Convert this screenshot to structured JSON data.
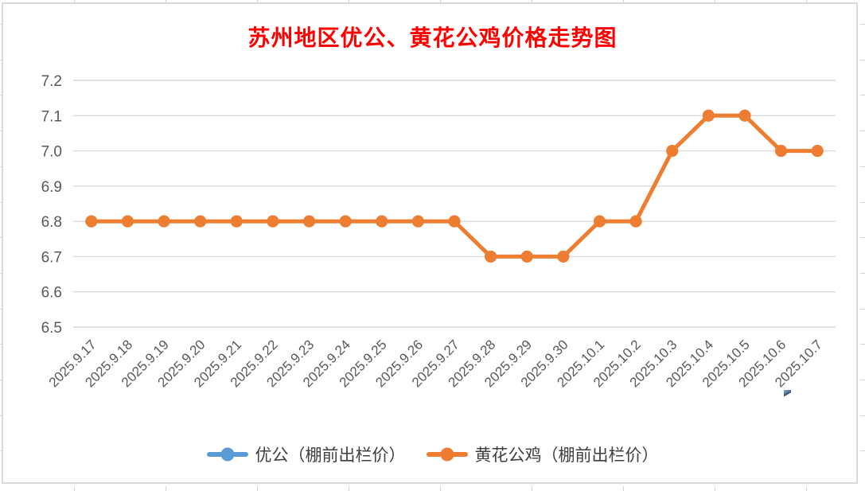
{
  "title": {
    "text": "苏州地区优公、黄花公鸡价格走势图",
    "color": "#FF0000"
  },
  "legend": {
    "items": [
      {
        "label": "优公（棚前出栏价）",
        "color": "#5B9BD5"
      },
      {
        "label": "黄花公鸡（棚前出栏价）",
        "color": "#ED7D31"
      }
    ]
  },
  "chart_data": {
    "type": "line",
    "title": "苏州地区优公、黄花公鸡价格走势图",
    "categories": [
      "2025.9.17",
      "2025.9.18",
      "2025.9.19",
      "2025.9.20",
      "2025.9.21",
      "2025.9.22",
      "2025.9.23",
      "2025.9.24",
      "2025.9.25",
      "2025.9.26",
      "2025.9.27",
      "2025.9.28",
      "2025.9.29",
      "2025.9.30",
      "2025.10.1",
      "2025.10.2",
      "2025.10.3",
      "2025.10.4",
      "2025.10.5",
      "2025.10.6",
      "2025.10.7"
    ],
    "series": [
      {
        "name": "优公（棚前出栏价）",
        "color": "#5B9BD5",
        "visible_in_plot": false,
        "values": []
      },
      {
        "name": "黄花公鸡（棚前出栏价）",
        "color": "#ED7D31",
        "visible_in_plot": true,
        "values": [
          6.8,
          6.8,
          6.8,
          6.8,
          6.8,
          6.8,
          6.8,
          6.8,
          6.8,
          6.8,
          6.8,
          6.7,
          6.7,
          6.7,
          6.8,
          6.8,
          7.0,
          7.1,
          7.1,
          7.0,
          7.0
        ]
      }
    ],
    "ylim": [
      6.5,
      7.2
    ],
    "ytick_step": 0.1,
    "yticks": [
      "7.2",
      "7.1",
      "7.0",
      "6.9",
      "6.8",
      "6.7",
      "6.6",
      "6.5"
    ],
    "xlabel": "",
    "ylabel": "",
    "grid": true,
    "legend_position": "bottom",
    "colors": {
      "gridline": "#D9D9D9",
      "axis_text": "#595959",
      "title_text": "#FF0000",
      "frame_border": "#D9D9D9"
    }
  }
}
